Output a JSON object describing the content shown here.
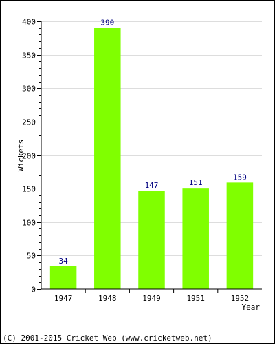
{
  "chart_data": {
    "type": "bar",
    "categories": [
      "1947",
      "1948",
      "1949",
      "1951",
      "1952"
    ],
    "values": [
      34,
      390,
      147,
      151,
      159
    ],
    "value_labels": [
      "34",
      "390",
      "147",
      "151",
      "159"
    ],
    "xlabel": "Year",
    "ylabel": "Wickets",
    "ylim": [
      0,
      400
    ],
    "yticks": [
      0,
      50,
      100,
      150,
      200,
      250,
      300,
      350,
      400
    ],
    "ytick_labels": [
      "0",
      "50",
      "100",
      "150",
      "200",
      "250",
      "300",
      "350",
      "400"
    ],
    "grid": true,
    "bar_color": "#80ff00",
    "label_color": "#000080"
  },
  "footer": {
    "copyright": "(C) 2001-2015 Cricket Web (www.cricketweb.net)"
  }
}
